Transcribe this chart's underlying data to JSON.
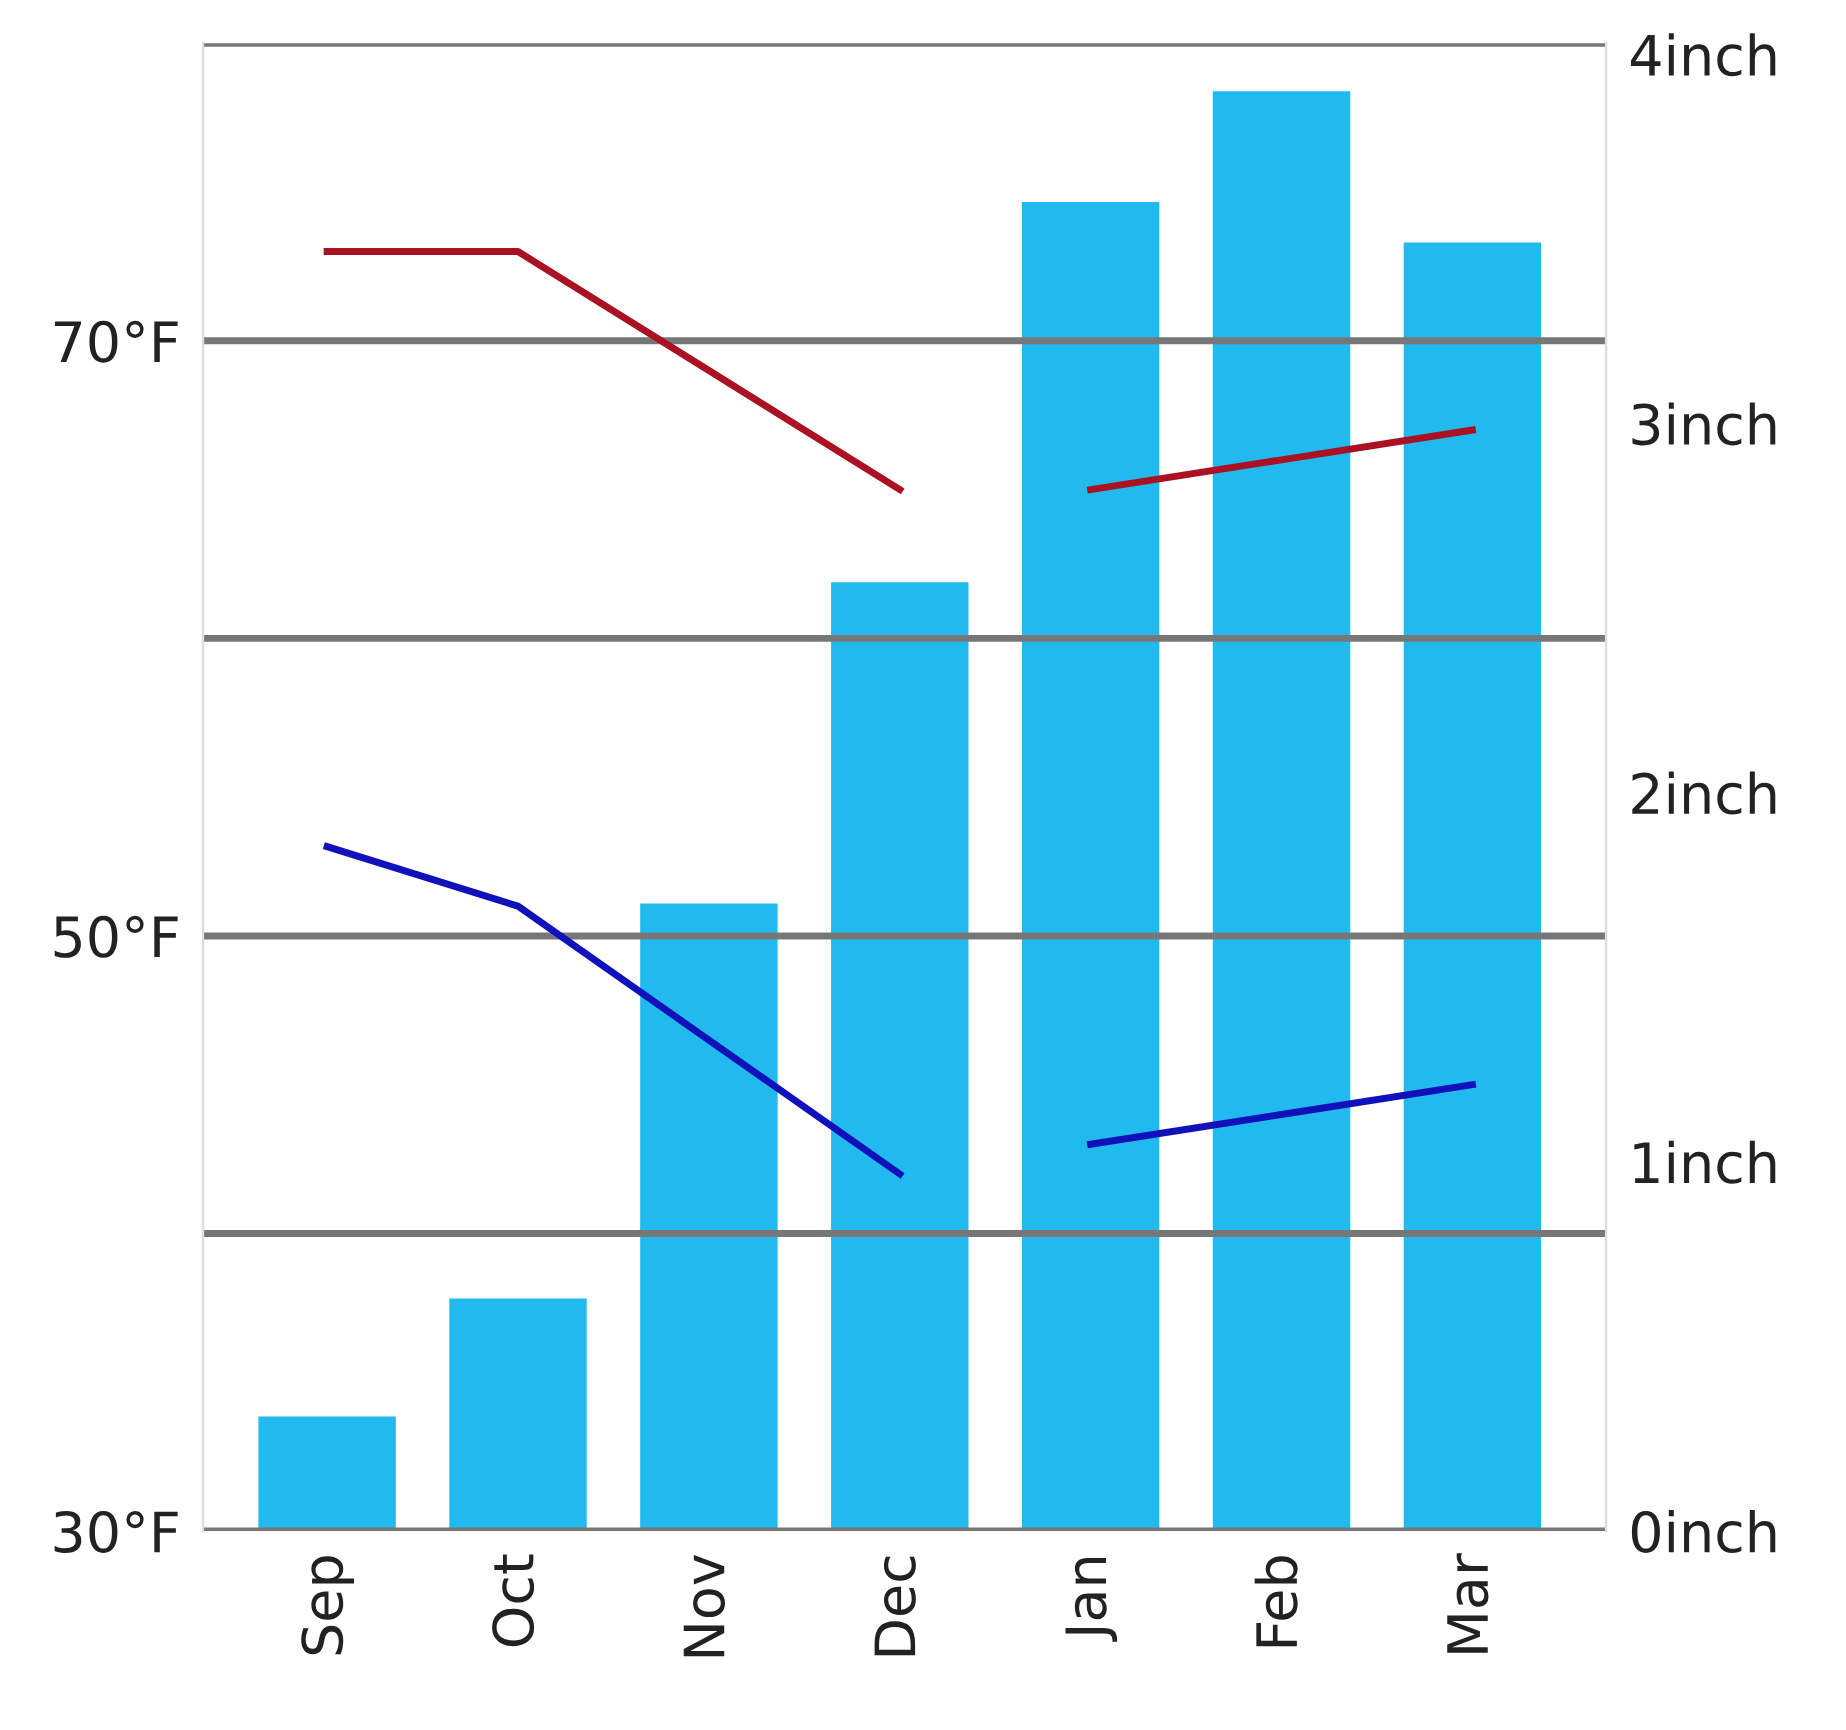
{
  "chart_data": {
    "type": "bar",
    "categories": [
      "Sep",
      "Oct",
      "Nov",
      "Dec",
      "Jan",
      "Feb",
      "Mar"
    ],
    "series": [
      {
        "axis": "y2",
        "color": "#22baee",
        "values": [
          0.31,
          0.63,
          1.7,
          2.57,
          3.6,
          3.9,
          3.49
        ]
      },
      {
        "type": "line",
        "color": "#aa1122",
        "values": [
          73,
          73,
          69,
          65,
          null,
          null,
          null
        ]
      },
      {
        "type": "line",
        "color": "#aa1122",
        "values": [
          null,
          null,
          null,
          null,
          65,
          66,
          67
        ]
      },
      {
        "type": "line",
        "color": "#1111bb",
        "values": [
          53,
          51,
          46.5,
          42,
          null,
          null,
          null
        ]
      },
      {
        "type": "line",
        "color": "#1111bb",
        "values": [
          null,
          null,
          null,
          null,
          43,
          44,
          45
        ]
      }
    ],
    "ylim": [
      30,
      80
    ],
    "yticks": [
      {
        "value": 30,
        "label": "30°F"
      },
      {
        "value": 40,
        "label": null
      },
      {
        "value": 50,
        "label": "50°F"
      },
      {
        "value": 60,
        "label": null
      },
      {
        "value": 70,
        "label": "70°F"
      },
      {
        "value": 80,
        "label": null
      }
    ],
    "y2lim": [
      0,
      4.03
    ],
    "y2ticks": [
      {
        "value": 0,
        "label": "0inch"
      },
      {
        "value": 1,
        "label": "1inch"
      },
      {
        "value": 2,
        "label": "2inch"
      },
      {
        "value": 3,
        "label": "3inch"
      },
      {
        "value": 4,
        "label": "4inch"
      }
    ],
    "grid": "y",
    "marker": "none",
    "line_style": "solid"
  }
}
